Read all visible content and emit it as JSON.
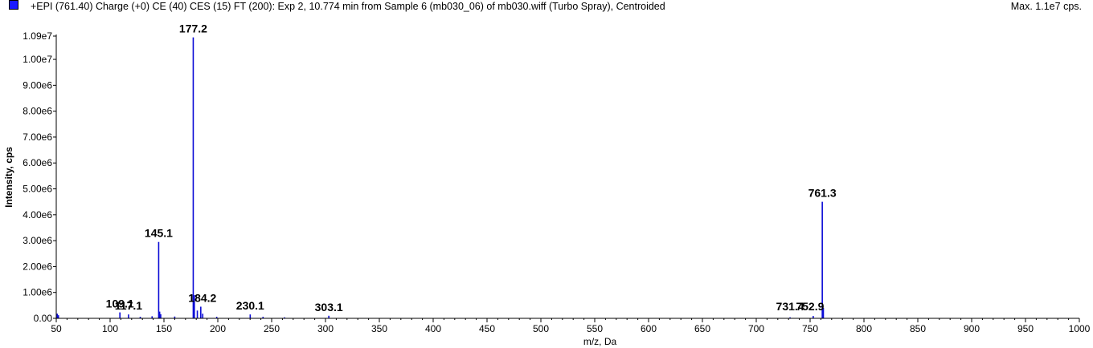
{
  "header": {
    "title": "+EPI (761.40) Charge (+0) CE (40) CES (15) FT (200): Exp 2, 10.774 min from Sample 6 (mb030_06) of mb030.wiff (Turbo Spray), Centroided",
    "max_intensity": "Max. 1.1e7 cps."
  },
  "colors": {
    "series": "#0a0ad6",
    "axis": "#000000",
    "swatch": "#1a1aff"
  },
  "chart_data": {
    "type": "bar",
    "title": "+EPI (761.40) Charge (+0) CE (40) CES (15) FT (200): Exp 2, 10.774 min from Sample 6 (mb030_06) of mb030.wiff (Turbo Spray), Centroided",
    "xlabel": "m/z, Da",
    "ylabel": "Intensity, cps",
    "xlim": [
      50,
      1000
    ],
    "ylim": [
      0,
      10900000
    ],
    "x_ticks": [
      "50",
      "100",
      "150",
      "200",
      "250",
      "300",
      "350",
      "400",
      "450",
      "500",
      "550",
      "600",
      "650",
      "700",
      "750",
      "800",
      "850",
      "900",
      "950",
      "1000"
    ],
    "x_tick_values": [
      50,
      100,
      150,
      200,
      250,
      300,
      350,
      400,
      450,
      500,
      550,
      600,
      650,
      700,
      750,
      800,
      850,
      900,
      950,
      1000
    ],
    "y_ticks": [
      "0.00",
      "1.00e6",
      "2.00e6",
      "3.00e6",
      "4.00e6",
      "5.00e6",
      "6.00e6",
      "7.00e6",
      "8.00e6",
      "9.00e6",
      "1.00e7",
      "1.09e7"
    ],
    "y_tick_values": [
      0,
      1000000,
      2000000,
      3000000,
      4000000,
      5000000,
      6000000,
      7000000,
      8000000,
      9000000,
      10000000,
      10900000
    ],
    "grid": false,
    "legend": "top-left",
    "series": [
      {
        "mz": [
          51,
          52,
          109.1,
          117.1,
          128,
          139,
          145.1,
          146,
          147,
          160,
          177.2,
          178.2,
          181,
          184.2,
          186,
          199,
          230.1,
          242,
          262,
          303.1,
          731.4,
          752.9,
          761.3,
          762.3
        ],
        "intensity": [
          180000,
          120000,
          230000,
          150000,
          60000,
          80000,
          2950000,
          260000,
          160000,
          70000,
          10850000,
          900000,
          300000,
          450000,
          180000,
          60000,
          150000,
          60000,
          40000,
          100000,
          40000,
          90000,
          4500000,
          400000
        ]
      }
    ],
    "peak_labels": [
      {
        "mz": 109.1,
        "text": "109.1"
      },
      {
        "mz": 117.1,
        "text": "117.1"
      },
      {
        "mz": 145.1,
        "text": "145.1"
      },
      {
        "mz": 177.2,
        "text": "177.2"
      },
      {
        "mz": 184.2,
        "text": "184.2"
      },
      {
        "mz": 230.1,
        "text": "230.1"
      },
      {
        "mz": 303.1,
        "text": "303.1"
      },
      {
        "mz": 731.4,
        "text": "731.4"
      },
      {
        "mz": 752.9,
        "text": "752.9"
      },
      {
        "mz": 761.3,
        "text": "761.3"
      }
    ]
  }
}
